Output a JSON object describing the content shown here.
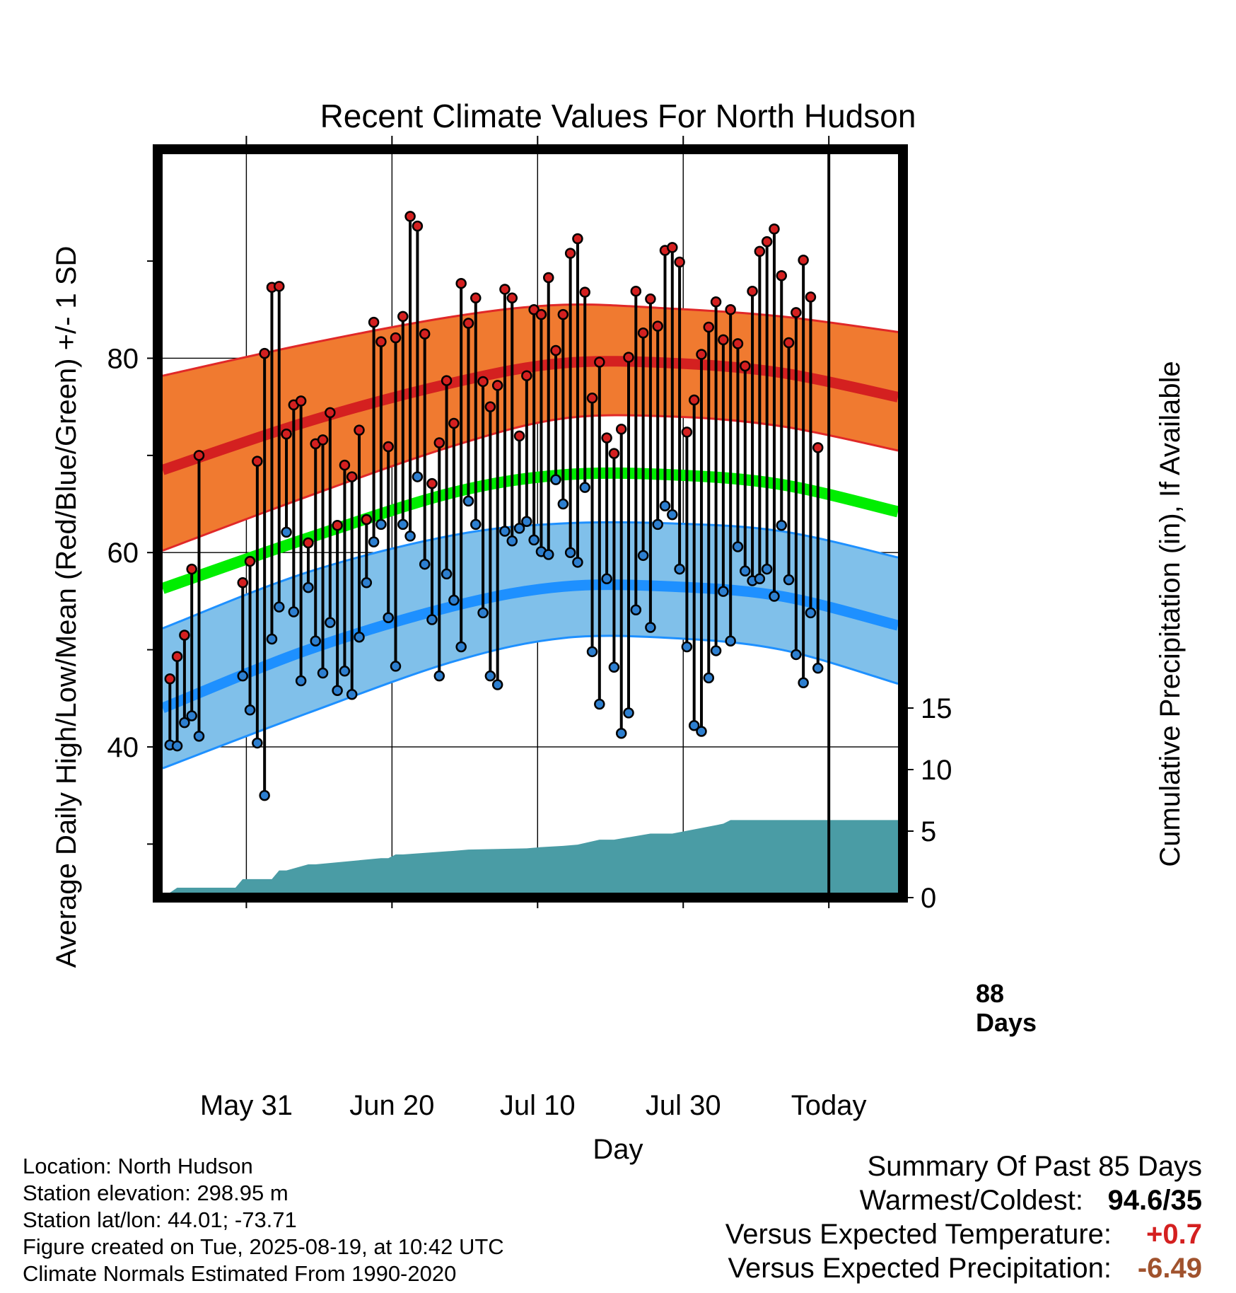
{
  "chart_data": {
    "type": "line",
    "title": "Recent Climate Values For North Hudson",
    "xlabel": "Day",
    "ylabel_left": "Average Daily High/Low/Mean (Red/Blue/Green) +/- 1 SD",
    "ylabel_right": "Cumulative Precipitation (in), If Available",
    "x_ticks": [
      "May 31",
      "Jun 20",
      "Jul 10",
      "Jul 30",
      "Today"
    ],
    "x_tick_days": [
      11.5,
      31.5,
      51.5,
      71.5,
      91.5
    ],
    "y_ticks": [
      40,
      60,
      80
    ],
    "y_minor_ticks": [
      30,
      50,
      70,
      90
    ],
    "y2_ticks": [
      0,
      5,
      10,
      15
    ],
    "xlim": [
      0,
      101
    ],
    "ylim": [
      25,
      101
    ],
    "y2lim": [
      0,
      60
    ],
    "today_label": [
      "88",
      "Days"
    ],
    "normal_high": {
      "x": [
        0,
        20,
        40,
        55,
        70,
        85,
        101
      ],
      "mean": [
        68.5,
        73.5,
        77.5,
        79.5,
        79.5,
        78.5,
        76.0
      ],
      "upper": [
        78.2,
        81.5,
        84.3,
        85.5,
        85.1,
        84.3,
        82.7
      ],
      "lower": [
        60.2,
        65.8,
        71.0,
        73.8,
        74.0,
        73.0,
        70.5
      ]
    },
    "normal_low": {
      "x": [
        0,
        20,
        40,
        55,
        70,
        85,
        101
      ],
      "mean": [
        44.0,
        50.0,
        54.5,
        56.5,
        56.5,
        55.5,
        52.5
      ],
      "upper": [
        52.2,
        58.0,
        61.8,
        63.0,
        63.0,
        62.2,
        59.5
      ],
      "lower": [
        37.8,
        43.5,
        48.8,
        51.2,
        51.2,
        50.0,
        46.5
      ]
    },
    "normal_mean": {
      "x": [
        0,
        20,
        40,
        55,
        70,
        85,
        101
      ],
      "values": [
        56.3,
        61.5,
        66.2,
        68.0,
        68.0,
        67.0,
        64.2
      ]
    },
    "daily_temps": {
      "x": [
        1,
        2,
        3,
        4,
        5,
        11,
        12,
        13,
        14,
        15,
        16,
        17,
        18,
        19,
        20,
        21,
        22,
        23,
        24,
        25,
        26,
        27,
        28,
        29,
        30,
        31,
        32,
        33,
        34,
        35,
        36,
        37,
        38,
        39,
        40,
        41,
        42,
        43,
        44,
        45,
        46,
        47,
        48,
        49,
        50,
        51,
        52,
        53,
        54,
        55,
        56,
        57,
        58,
        59,
        60,
        61,
        62,
        63,
        64,
        65,
        66,
        67,
        68,
        69,
        70,
        71,
        72,
        73,
        74,
        75,
        76,
        77,
        78,
        79,
        80,
        81,
        82,
        83,
        84,
        85,
        86,
        87,
        88,
        89,
        90
      ],
      "high": [
        47.0,
        49.3,
        51.5,
        58.3,
        70.0,
        56.9,
        59.1,
        69.4,
        80.5,
        87.3,
        87.4,
        72.2,
        75.2,
        75.6,
        61.0,
        71.2,
        71.6,
        74.4,
        62.8,
        69.0,
        67.8,
        72.6,
        63.4,
        83.7,
        81.7,
        70.9,
        82.1,
        84.3,
        94.6,
        93.6,
        82.5,
        67.1,
        71.3,
        77.7,
        73.3,
        87.7,
        83.6,
        86.2,
        77.6,
        75.0,
        77.2,
        87.1,
        86.2,
        72.0,
        78.2,
        85.0,
        84.5,
        88.3,
        80.8,
        84.5,
        90.8,
        92.3,
        86.8,
        75.9,
        79.6,
        71.8,
        70.2,
        72.7,
        80.1,
        86.9,
        82.6,
        86.1,
        83.3,
        91.1,
        91.4,
        89.9,
        72.4,
        75.7,
        80.4,
        83.2,
        85.8,
        81.9,
        85.0,
        81.5,
        79.2,
        86.9,
        91.0,
        92.0,
        93.3,
        88.5,
        81.6,
        84.7,
        90.1,
        86.3,
        70.8
      ],
      "low": [
        40.2,
        40.1,
        42.5,
        43.2,
        41.1,
        47.3,
        43.8,
        40.4,
        35.0,
        51.1,
        54.4,
        62.1,
        53.9,
        46.8,
        56.4,
        50.9,
        47.6,
        52.8,
        45.8,
        47.8,
        45.4,
        51.3,
        56.9,
        61.1,
        62.9,
        53.3,
        48.3,
        62.9,
        61.7,
        67.8,
        58.8,
        53.1,
        47.3,
        57.8,
        55.1,
        50.3,
        65.3,
        62.9,
        53.8,
        47.3,
        46.4,
        62.2,
        61.2,
        62.5,
        63.2,
        61.3,
        60.1,
        59.8,
        67.5,
        65.0,
        60.0,
        59.0,
        66.7,
        49.8,
        44.4,
        57.3,
        48.2,
        41.4,
        43.5,
        54.1,
        59.7,
        52.3,
        62.9,
        64.8,
        63.9,
        58.3,
        50.3,
        42.2,
        41.6,
        47.1,
        49.9,
        56.0,
        50.9,
        60.6,
        58.1,
        57.1,
        57.3,
        58.3,
        55.5,
        62.8,
        57.2,
        49.5,
        46.6,
        53.8,
        48.1
      ]
    },
    "precip": {
      "x": [
        1,
        2,
        10,
        11,
        15,
        16,
        17,
        20,
        21,
        30,
        31,
        32,
        33,
        40,
        42,
        50,
        52,
        55,
        57,
        60,
        62,
        67,
        70,
        77,
        78,
        80,
        101
      ],
      "values": [
        0,
        0.4,
        0.4,
        1.1,
        1.1,
        1.8,
        1.8,
        2.3,
        2.3,
        2.8,
        2.8,
        3.1,
        3.1,
        3.4,
        3.5,
        3.6,
        3.7,
        3.8,
        3.9,
        4.3,
        4.3,
        4.8,
        4.8,
        5.6,
        5.9,
        5.9,
        5.9
      ]
    }
  },
  "info": {
    "location": "Location: North Hudson",
    "elevation": "Station elevation: 298.95 m",
    "latlon": "Station lat/lon: 44.01; -73.71",
    "created": "Figure created on Tue, 2025-08-19, at 10:42 UTC",
    "normals": "Climate Normals Estimated From 1990-2020"
  },
  "summary": {
    "heading": "Summary Of Past 85 Days",
    "warm_cold_label": "Warmest/Coldest:",
    "warm_cold_value": "94.6/35",
    "temp_label": "Versus Expected Temperature:",
    "temp_value": "+0.7",
    "precip_label": "Versus Expected Precipitation:",
    "precip_value": "-6.49"
  },
  "colors": {
    "high_band": "#f07a30",
    "high_line": "#d42020",
    "high_band_edge": "#e02828",
    "low_band": "#80c0ea",
    "low_line": "#1e90ff",
    "low_band_edge": "#1e90ff",
    "mean_line": "#00ee00",
    "precip_fill": "#4a9ca5",
    "high_marker": "#d42020",
    "low_marker": "#2d7fd0",
    "temp_value": "#d42020",
    "precip_value": "#a0522d"
  }
}
